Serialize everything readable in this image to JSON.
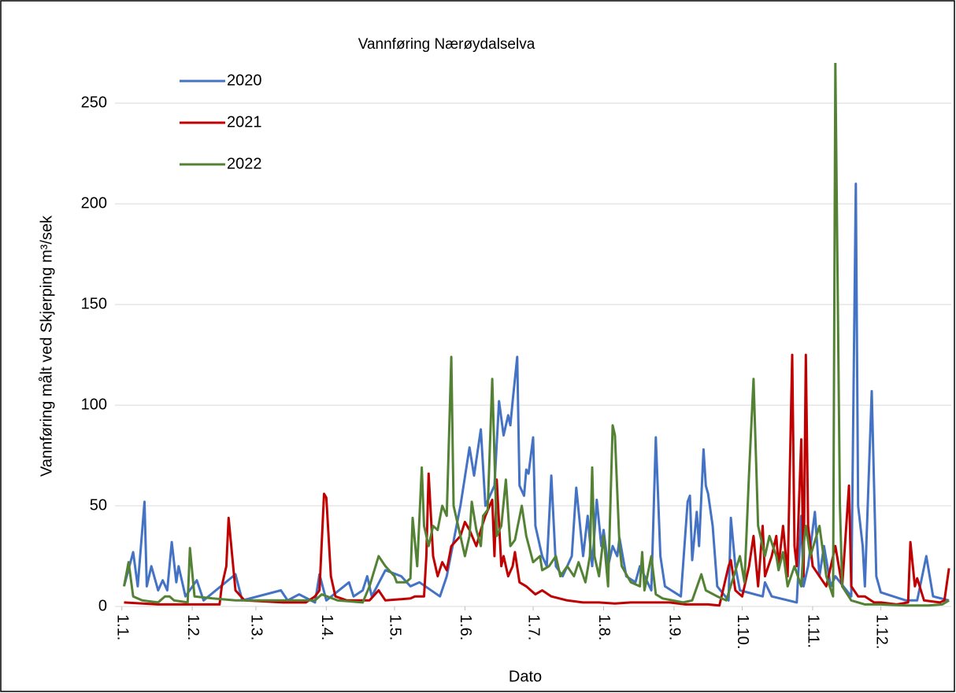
{
  "chart_data": {
    "type": "line",
    "title": "Vannføring Nærøydalselva",
    "x_label": "Dato",
    "y_label": "Vannføring målt ved Skjerping m³/sek",
    "xlim": [
      -2,
      366
    ],
    "xticks": [
      {
        "value": 1,
        "label": "1.1."
      },
      {
        "value": 32,
        "label": "1.2."
      },
      {
        "value": 60,
        "label": "1.3."
      },
      {
        "value": 91,
        "label": "1.4."
      },
      {
        "value": 121,
        "label": "1.5."
      },
      {
        "value": 152,
        "label": "1.6."
      },
      {
        "value": 182,
        "label": "1.7."
      },
      {
        "value": 213,
        "label": "1.8."
      },
      {
        "value": 244,
        "label": "1.9."
      },
      {
        "value": 274,
        "label": "1.10."
      },
      {
        "value": 305,
        "label": "1.11."
      },
      {
        "value": 335,
        "label": "1.12."
      }
    ],
    "ylim": [
      0,
      270
    ],
    "yticks": [
      0,
      50,
      100,
      150,
      200,
      250
    ],
    "grid": true,
    "legend": "upper-left",
    "series": [
      {
        "name": "2020",
        "color": "#4472c4",
        "x": [
          2,
          6,
          8,
          11,
          12,
          14,
          17,
          19,
          21,
          23,
          25,
          26,
          29,
          34,
          37,
          51,
          54,
          71,
          74,
          79,
          86,
          88,
          91,
          101,
          103,
          107,
          109,
          111,
          117,
          124,
          128,
          132,
          141,
          144,
          150,
          154,
          156,
          159,
          161,
          165,
          167,
          169,
          171,
          172,
          173,
          175,
          176,
          178,
          179,
          180,
          182,
          183,
          186,
          188,
          190,
          192,
          195,
          199,
          201,
          204,
          206,
          208,
          210,
          212,
          213,
          215,
          217,
          219,
          220,
          223,
          227,
          229,
          234,
          236,
          238,
          240,
          247,
          250,
          251,
          252,
          254,
          255,
          257,
          258,
          259,
          261,
          263,
          268,
          269,
          271,
          273,
          283,
          284,
          287,
          298,
          300,
          301,
          303,
          306,
          308,
          310,
          313,
          315,
          322,
          324,
          325,
          327,
          328,
          331,
          333,
          335,
          346,
          351,
          355,
          358,
          365
        ],
        "values": [
          10,
          27,
          10,
          52,
          10,
          20,
          8,
          13,
          8,
          32,
          12,
          20,
          5,
          13,
          3,
          16,
          3,
          8,
          3,
          6,
          2,
          16,
          3,
          12,
          5,
          8,
          15,
          5,
          18,
          15,
          10,
          12,
          5,
          15,
          50,
          79,
          65,
          88,
          50,
          60,
          102,
          85,
          95,
          90,
          102,
          124,
          60,
          55,
          68,
          66,
          84,
          40,
          25,
          20,
          65,
          20,
          15,
          25,
          59,
          25,
          45,
          20,
          53,
          30,
          38,
          20,
          30,
          25,
          34,
          15,
          12,
          20,
          8,
          84,
          25,
          10,
          5,
          52,
          55,
          23,
          47,
          30,
          78,
          60,
          56,
          40,
          10,
          3,
          44,
          20,
          8,
          5,
          12,
          5,
          2,
          45,
          10,
          20,
          47,
          15,
          30,
          10,
          15,
          5,
          210,
          50,
          30,
          10,
          107,
          15,
          7,
          3,
          3,
          25,
          5,
          3
        ]
      },
      {
        "name": "2021",
        "color": "#c00000",
        "x": [
          2,
          17,
          44,
          45,
          47,
          48,
          50,
          51,
          55,
          72,
          82,
          86,
          88,
          90,
          91,
          93,
          95,
          100,
          110,
          114,
          117,
          128,
          130,
          134,
          135,
          136,
          138,
          140,
          142,
          144,
          146,
          150,
          152,
          154,
          157,
          159,
          161,
          164,
          165,
          166,
          168,
          169,
          171,
          173,
          174,
          176,
          179,
          183,
          186,
          190,
          197,
          204,
          211,
          218,
          225,
          231,
          242,
          249,
          259,
          264,
          268,
          269,
          271,
          274,
          277,
          279,
          281,
          283,
          284,
          287,
          289,
          290,
          292,
          294,
          296,
          297,
          298,
          300,
          301,
          302,
          303,
          305,
          308,
          311,
          315,
          318,
          321,
          322,
          325,
          328,
          332,
          335,
          342,
          347,
          348,
          350,
          351,
          354,
          361,
          363,
          365
        ],
        "values": [
          2,
          1,
          1,
          10,
          20,
          44,
          20,
          8,
          3,
          2,
          2,
          5,
          8,
          56,
          54,
          15,
          5,
          3,
          3,
          8,
          3,
          4,
          5,
          5,
          25,
          66,
          25,
          15,
          22,
          18,
          30,
          35,
          42,
          38,
          30,
          38,
          45,
          53,
          25,
          63,
          20,
          25,
          15,
          20,
          27,
          12,
          10,
          6,
          8,
          5,
          3,
          2,
          2,
          1.5,
          2,
          2,
          2,
          1,
          1,
          0.5,
          20,
          23,
          8,
          5,
          20,
          35,
          10,
          40,
          15,
          25,
          35,
          20,
          40,
          15,
          125,
          30,
          20,
          83,
          15,
          125,
          40,
          20,
          15,
          10,
          30,
          10,
          60,
          10,
          5,
          5,
          2,
          2,
          1,
          2,
          32,
          10,
          14,
          3,
          2,
          3,
          19
        ]
      },
      {
        "name": "2022",
        "color": "#548235",
        "x": [
          2,
          4,
          6,
          10,
          17,
          20,
          22,
          24,
          30,
          31,
          33,
          41,
          51,
          65,
          79,
          86,
          89,
          96,
          107,
          110,
          114,
          117,
          121,
          122,
          126,
          128,
          129,
          131,
          133,
          134,
          136,
          138,
          140,
          142,
          144,
          146,
          147,
          150,
          152,
          154,
          155,
          157,
          159,
          160,
          162,
          164,
          166,
          168,
          170,
          172,
          174,
          177,
          179,
          182,
          185,
          186,
          189,
          192,
          194,
          197,
          200,
          202,
          205,
          207,
          208,
          209,
          211,
          213,
          215,
          217,
          218,
          220,
          221,
          225,
          229,
          230,
          231,
          234,
          236,
          239,
          248,
          252,
          256,
          258,
          263,
          267,
          273,
          275,
          277,
          279,
          281,
          284,
          286,
          289,
          290,
          292,
          294,
          297,
          300,
          301,
          302,
          304,
          308,
          311,
          314,
          315,
          317,
          318,
          322,
          328,
          335,
          346,
          356,
          362,
          365
        ],
        "values": [
          10,
          22,
          5,
          3,
          2,
          5,
          5,
          3,
          2,
          29,
          5,
          4,
          3,
          3,
          3,
          3,
          6,
          3,
          2,
          10,
          25,
          20,
          15,
          12,
          12,
          14,
          44,
          20,
          69,
          40,
          30,
          40,
          38,
          50,
          45,
          124,
          50,
          35,
          25,
          35,
          52,
          38,
          30,
          45,
          48,
          113,
          35,
          40,
          63,
          30,
          33,
          50,
          35,
          22,
          25,
          18,
          20,
          25,
          15,
          20,
          15,
          22,
          12,
          25,
          69,
          25,
          15,
          35,
          10,
          90,
          85,
          30,
          20,
          12,
          10,
          27,
          8,
          25,
          6,
          4,
          2,
          3,
          16,
          8,
          5,
          3,
          25,
          12,
          66,
          113,
          40,
          25,
          35,
          25,
          18,
          27,
          10,
          20,
          10,
          30,
          40,
          25,
          40,
          15,
          5,
          270,
          50,
          10,
          3,
          1,
          1,
          0.5,
          0.5,
          1,
          3
        ]
      }
    ]
  }
}
